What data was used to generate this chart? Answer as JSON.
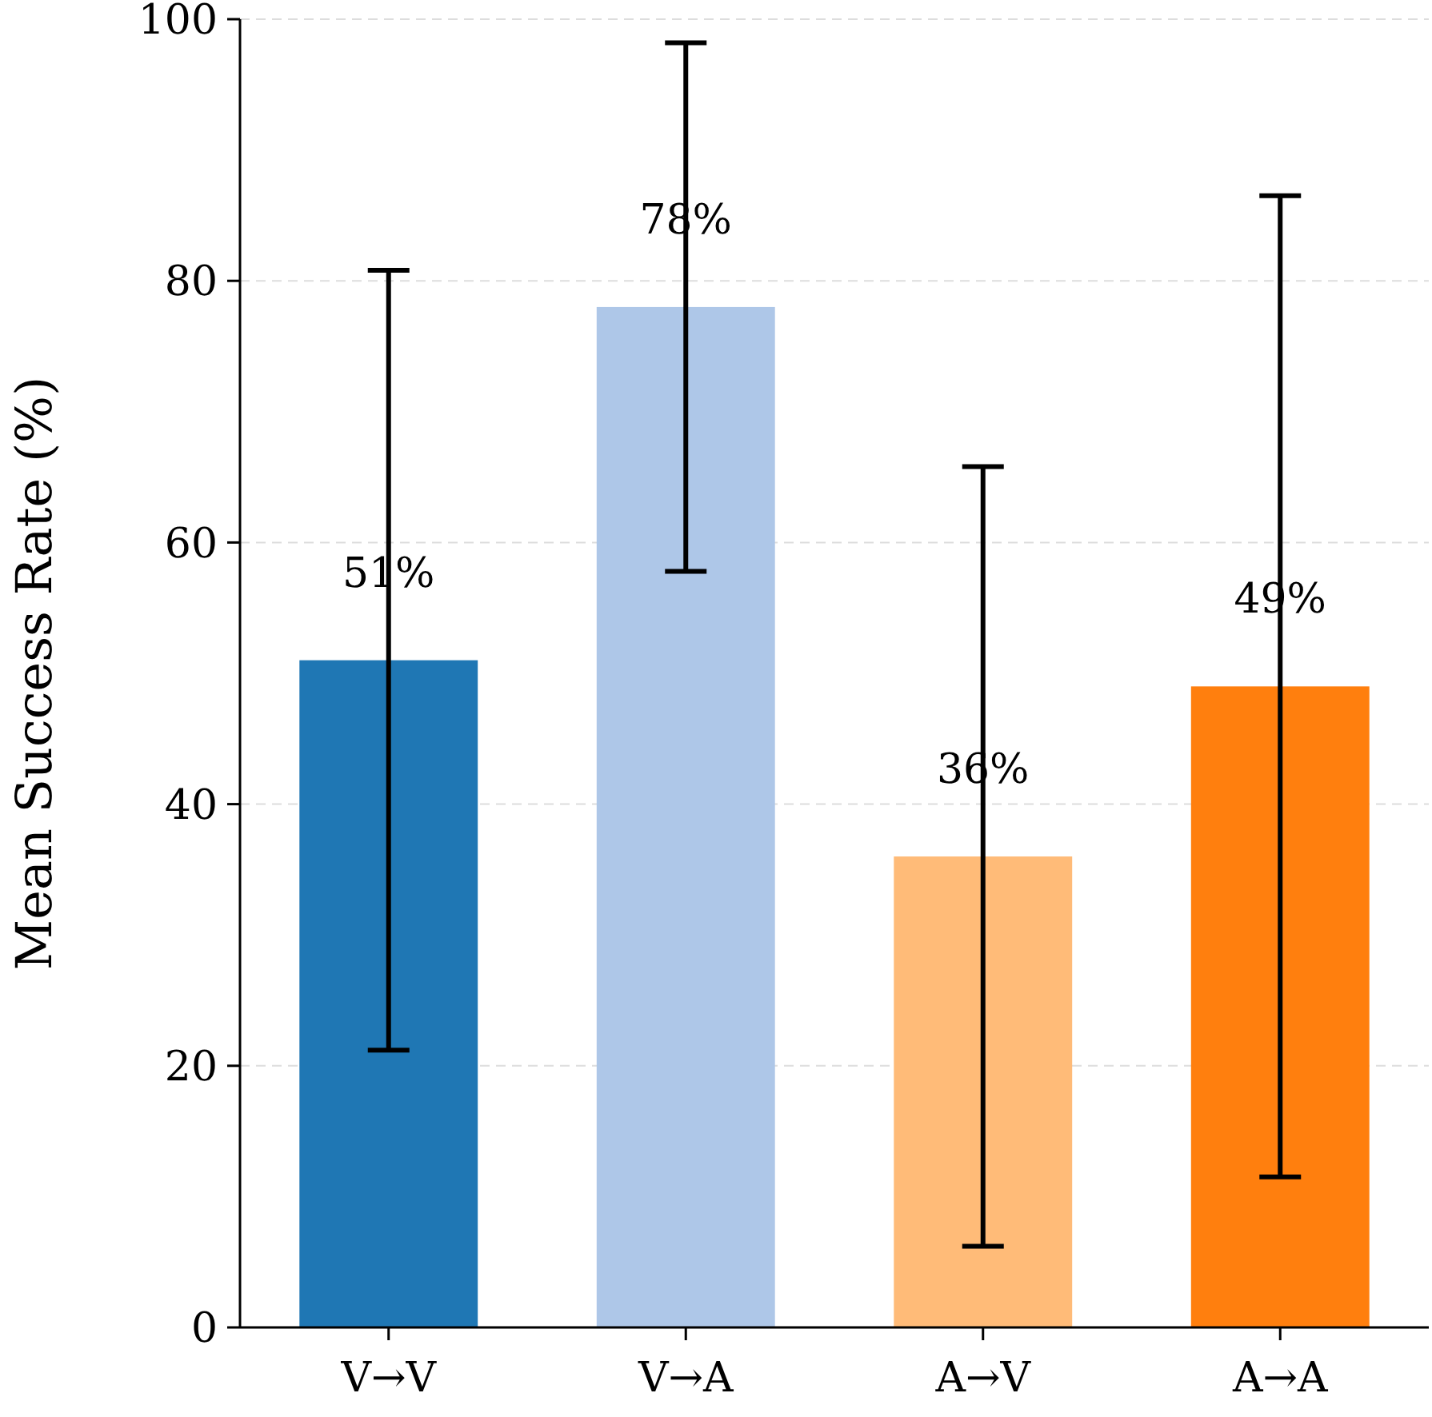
{
  "chart_data": {
    "type": "bar",
    "ylabel": "Mean Success Rate (%)",
    "categories": [
      "V→V",
      "V→A",
      "A→V",
      "A→A"
    ],
    "values": [
      51,
      78,
      36,
      49
    ],
    "colors": [
      "#1f77b4",
      "#aec7e8",
      "#ffbb78",
      "#ff7f0e"
    ],
    "errors": [
      29.8,
      20.2,
      29.8,
      37.5
    ],
    "value_labels": [
      "51%",
      "78%",
      "36%",
      "49%"
    ],
    "ylim": [
      0,
      100
    ],
    "yticks": [
      0,
      20,
      40,
      60,
      80,
      100
    ],
    "grid": "y"
  }
}
